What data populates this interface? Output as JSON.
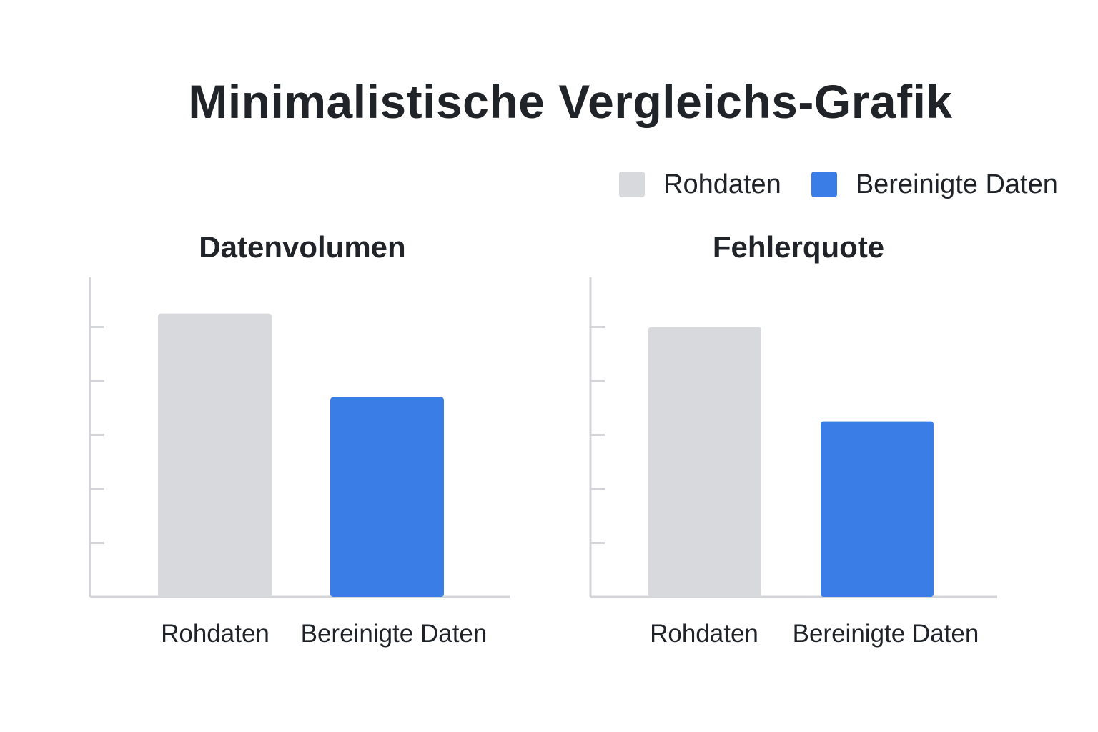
{
  "title": "Minimalistische Vergleichs-Grafik",
  "colors": {
    "raw": "#d8d9dc",
    "clean": "#3a7de6",
    "axis": "#d4d5d8"
  },
  "legend": [
    {
      "label": "Rohdaten",
      "color": "#d8d9dc"
    },
    {
      "label": "Bereinigte Daten",
      "color": "#3a7de6"
    }
  ],
  "chart_data": [
    {
      "type": "bar",
      "title": "Datenvolumen",
      "categories": [
        "Rohdaten",
        "Bereinigte Daten"
      ],
      "values": [
        5.25,
        3.7
      ],
      "colors": [
        "#d8d9dc",
        "#3a7de6"
      ],
      "ylim": [
        0,
        6
      ],
      "xlabel": "",
      "ylabel": "",
      "grid": false,
      "y_tick_labels": false,
      "legend_position": "top-right"
    },
    {
      "type": "bar",
      "title": "Fehlerquote",
      "categories": [
        "Rohdaten",
        "Bereinigte Daten"
      ],
      "values": [
        5.0,
        3.25
      ],
      "colors": [
        "#d8d9dc",
        "#3a7de6"
      ],
      "ylim": [
        0,
        6
      ],
      "xlabel": "",
      "ylabel": "",
      "grid": false,
      "y_tick_labels": false,
      "legend_position": "top-right"
    }
  ]
}
